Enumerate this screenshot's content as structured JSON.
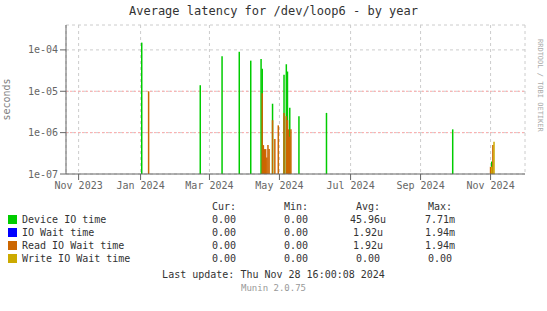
{
  "chart_data": {
    "type": "bar",
    "title": "Average latency for /dev/loop6 - by year",
    "y_label": "seconds",
    "log": "y",
    "grid": true,
    "legend": "bottom",
    "xlim": [
      1698451200,
      1733011200
    ],
    "xticks": [
      {
        "value": 1699401600,
        "label": "Nov 2023"
      },
      {
        "value": 1704067200,
        "label": "Jan 2024"
      },
      {
        "value": 1709251200,
        "label": "Mar 2024"
      },
      {
        "value": 1714521600,
        "label": "May 2024"
      },
      {
        "value": 1719878400,
        "label": "Jul 2024"
      },
      {
        "value": 1725148800,
        "label": "Sep 2024"
      },
      {
        "value": 1730419200,
        "label": "Nov 2024"
      }
    ],
    "ylim": [
      1e-07,
      0.0004
    ],
    "yticks": [
      {
        "value": 1e-07,
        "label": "1e-07"
      },
      {
        "value": 1e-06,
        "label": "1e-06"
      },
      {
        "value": 1e-05,
        "label": "1e-05"
      },
      {
        "value": 0.0001,
        "label": "1e-04"
      }
    ],
    "hlines": {
      "values": [
        1e-05,
        1e-06
      ],
      "color": "#ffaaaa"
    },
    "series": [
      {
        "name": "Device IO time",
        "color": "#00cc00",
        "x": [
          1704153600,
          1708560000,
          1710201600,
          1711497600,
          1712361600,
          1713139200,
          1713225600,
          1714003200,
          1714867200,
          1715040000,
          1715126400,
          1715299200,
          1715990400,
          1718064000,
          1727568000,
          1730505600
        ],
        "values": [
          0.00015,
          1.4e-05,
          7e-05,
          9e-05,
          5.5e-05,
          6e-05,
          3.5e-05,
          5e-06,
          2.5e-05,
          4.5e-05,
          3e-05,
          4e-06,
          2.5e-06,
          3e-06,
          1.2e-06,
          2e-07
        ]
      },
      {
        "name": "IO Wait time",
        "color": "#0000ff",
        "x": [],
        "values": []
      },
      {
        "name": "Read IO Wait time",
        "color": "#cc6600",
        "x": [
          1704672000,
          1713225600,
          1713312000,
          1713398400,
          1713484800,
          1713571200,
          1713657600,
          1713744000,
          1714003200,
          1714176000,
          1714435200,
          1714867200,
          1715040000,
          1715126400,
          1715212800,
          1715299200,
          1715385600,
          1730419200,
          1730592000
        ],
        "values": [
          1e-05,
          9e-06,
          5e-07,
          4e-07,
          4e-07,
          2.5e-07,
          5e-07,
          4e-07,
          2e-06,
          7e-07,
          1.5e-06,
          3e-06,
          2.5e-06,
          2e-06,
          1.2e-06,
          8e-07,
          1.2e-06,
          1.5e-07,
          5e-07
        ]
      },
      {
        "name": "Write IO Wait time",
        "color": "#ccaa00",
        "x": [
          1730505600,
          1730678400
        ],
        "values": [
          1.5e-07,
          6e-07
        ]
      }
    ],
    "table": {
      "columns": [
        "Cur:",
        "Min:",
        "Avg:",
        "Max:"
      ],
      "rows": [
        [
          "0.00",
          "0.00",
          "45.96u",
          "7.71m"
        ],
        [
          "0.00",
          "0.00",
          "1.92u",
          "1.94m"
        ],
        [
          "0.00",
          "0.00",
          "1.92u",
          "1.94m"
        ],
        [
          "0.00",
          "0.00",
          "0.00",
          "0.00"
        ]
      ]
    },
    "annotations": [
      "RRDTOOL / TOBI OETIKER",
      "Last update: Thu Nov 28 16:00:08 2024",
      "Munin 2.0.75"
    ]
  }
}
